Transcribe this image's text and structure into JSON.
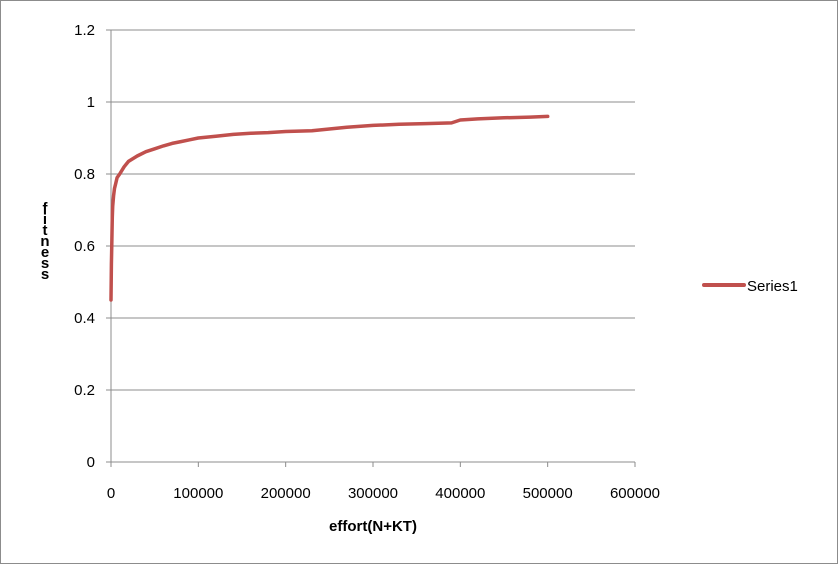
{
  "chart_data": {
    "type": "line",
    "title": "",
    "xlabel": "effort(N+KT)",
    "ylabel": "fitness",
    "xlim": [
      0,
      600000
    ],
    "ylim": [
      0,
      1.2
    ],
    "x_ticks": [
      "0",
      "100000",
      "200000",
      "300000",
      "400000",
      "500000",
      "600000"
    ],
    "y_ticks": [
      "0",
      "0.2",
      "0.4",
      "0.6",
      "0.8",
      "1",
      "1.2"
    ],
    "grid": "horizontal",
    "legend_position": "right",
    "series": [
      {
        "name": "Series1",
        "color": "#c0504d",
        "x": [
          0,
          500,
          1000,
          1500,
          2000,
          3000,
          4000,
          5000,
          7000,
          10000,
          15000,
          20000,
          30000,
          40000,
          50000,
          60000,
          70000,
          80000,
          90000,
          100000,
          120000,
          140000,
          160000,
          180000,
          200000,
          230000,
          250000,
          270000,
          300000,
          330000,
          360000,
          390000,
          400000,
          420000,
          450000,
          480000,
          500000
        ],
        "y": [
          0.45,
          0.55,
          0.62,
          0.68,
          0.71,
          0.74,
          0.76,
          0.77,
          0.79,
          0.8,
          0.82,
          0.835,
          0.85,
          0.862,
          0.87,
          0.878,
          0.885,
          0.89,
          0.895,
          0.9,
          0.905,
          0.91,
          0.913,
          0.915,
          0.918,
          0.92,
          0.925,
          0.93,
          0.935,
          0.938,
          0.94,
          0.942,
          0.95,
          0.953,
          0.956,
          0.958,
          0.96
        ]
      }
    ]
  }
}
